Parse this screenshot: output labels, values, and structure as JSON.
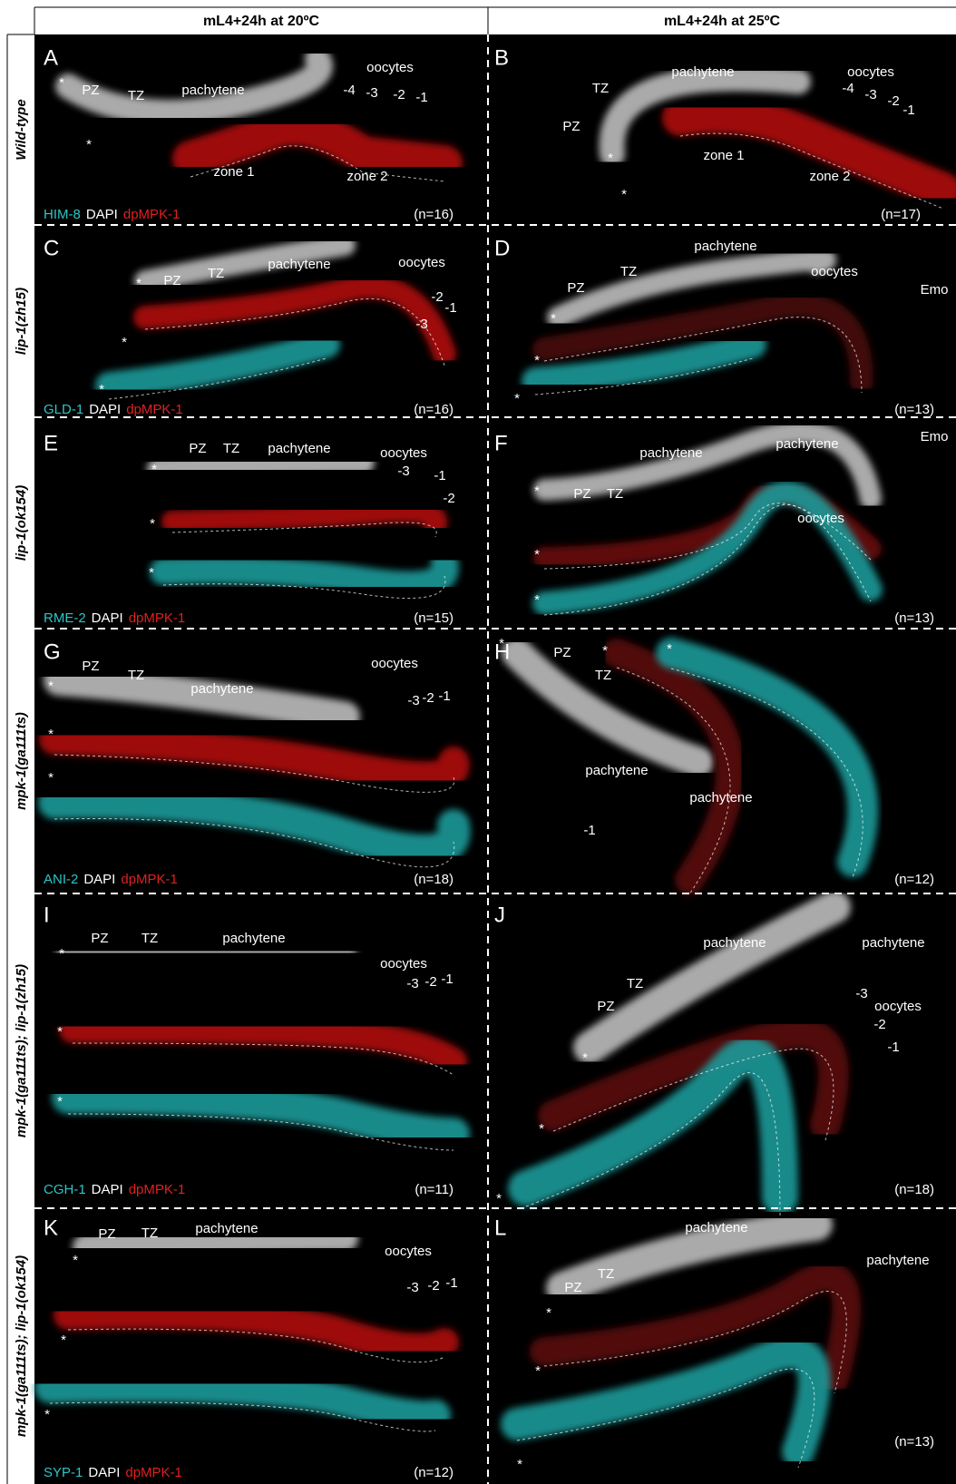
{
  "column_headers": [
    "mL4+24h at 20ºC",
    "mL4+24h at 25ºC"
  ],
  "rows": [
    {
      "label": "Wild-type",
      "panels": [
        {
          "letter": "A",
          "stain": [
            "HIM-8",
            "DAPI",
            "dpMPK-1"
          ],
          "n": "(n=16)",
          "annotations": [
            "*",
            "PZ",
            "TZ",
            "pachytene",
            "oocytes",
            "-4",
            "-3",
            "-2",
            "-1",
            "*",
            "zone 1",
            "zone 2"
          ]
        },
        {
          "letter": "B",
          "n": "(n=17)",
          "annotations": [
            "TZ",
            "PZ",
            "pachytene",
            "oocytes",
            "-4",
            "-3",
            "-2",
            "-1",
            "zone 1",
            "zone 2",
            "*",
            "*"
          ]
        }
      ]
    },
    {
      "label": "lip-1(zh15)",
      "panels": [
        {
          "letter": "C",
          "stain": [
            "GLD-1",
            "DAPI",
            "dpMPK-1"
          ],
          "n": "(n=16)",
          "annotations": [
            "PZ",
            "TZ",
            "pachytene",
            "oocytes",
            "-2",
            "-1",
            "-3",
            "*",
            "*",
            "*"
          ]
        },
        {
          "letter": "D",
          "n": "(n=13)",
          "annotations": [
            "PZ",
            "TZ",
            "pachytene",
            "oocytes",
            "Emo",
            "*",
            "*",
            "*"
          ]
        }
      ]
    },
    {
      "label": "lip-1(ok154)",
      "panels": [
        {
          "letter": "E",
          "stain": [
            "RME-2",
            "DAPI",
            "dpMPK-1"
          ],
          "n": "(n=15)",
          "annotations": [
            "PZ",
            "TZ",
            "pachytene",
            "oocytes",
            "-3",
            "-1",
            "-2",
            "*",
            "*",
            "*"
          ]
        },
        {
          "letter": "F",
          "n": "(n=13)",
          "annotations": [
            "PZ",
            "TZ",
            "pachytene",
            "pachytene",
            "Emo",
            "oocytes",
            "*",
            "*",
            "*"
          ]
        }
      ]
    },
    {
      "label": "mpk-1(ga111ts)",
      "panels": [
        {
          "letter": "G",
          "stain": [
            "ANI-2",
            "DAPI",
            "dpMPK-1"
          ],
          "n": "(n=18)",
          "annotations": [
            "PZ",
            "TZ",
            "pachytene",
            "oocytes",
            "-3",
            "-2",
            "-1",
            "*",
            "*",
            "*"
          ]
        },
        {
          "letter": "H",
          "n": "(n=12)",
          "annotations": [
            "*",
            "PZ",
            "TZ",
            "pachytene",
            "pachytene",
            "-1",
            "*",
            "*"
          ]
        }
      ]
    },
    {
      "label": "mpk-1(ga111ts); lip-1(zh15)",
      "panels": [
        {
          "letter": "I",
          "stain": [
            "CGH-1",
            "DAPI",
            "dpMPK-1"
          ],
          "n": "(n=11)",
          "annotations": [
            "PZ",
            "TZ",
            "pachytene",
            "oocytes",
            "-3",
            "-2",
            "-1",
            "*",
            "*",
            "*"
          ]
        },
        {
          "letter": "J",
          "n": "(n=18)",
          "annotations": [
            "PZ",
            "TZ",
            "pachytene",
            "pachytene",
            "-3",
            "oocytes",
            "-2",
            "-1",
            "*",
            "*",
            "*"
          ]
        }
      ]
    },
    {
      "label": "mpk-1(ga111ts); lip-1(ok154)",
      "panels": [
        {
          "letter": "K",
          "stain": [
            "SYP-1",
            "DAPI",
            "dpMPK-1"
          ],
          "n": "(n=12)",
          "annotations": [
            "PZ",
            "TZ",
            "pachytene",
            "oocytes",
            "-3",
            "-2",
            "-1",
            "*",
            "*",
            "*"
          ]
        },
        {
          "letter": "L",
          "n": "(n=13)",
          "annotations": [
            "PZ",
            "TZ",
            "pachytene",
            "pachytene",
            "*",
            "*",
            "*"
          ]
        }
      ]
    }
  ]
}
